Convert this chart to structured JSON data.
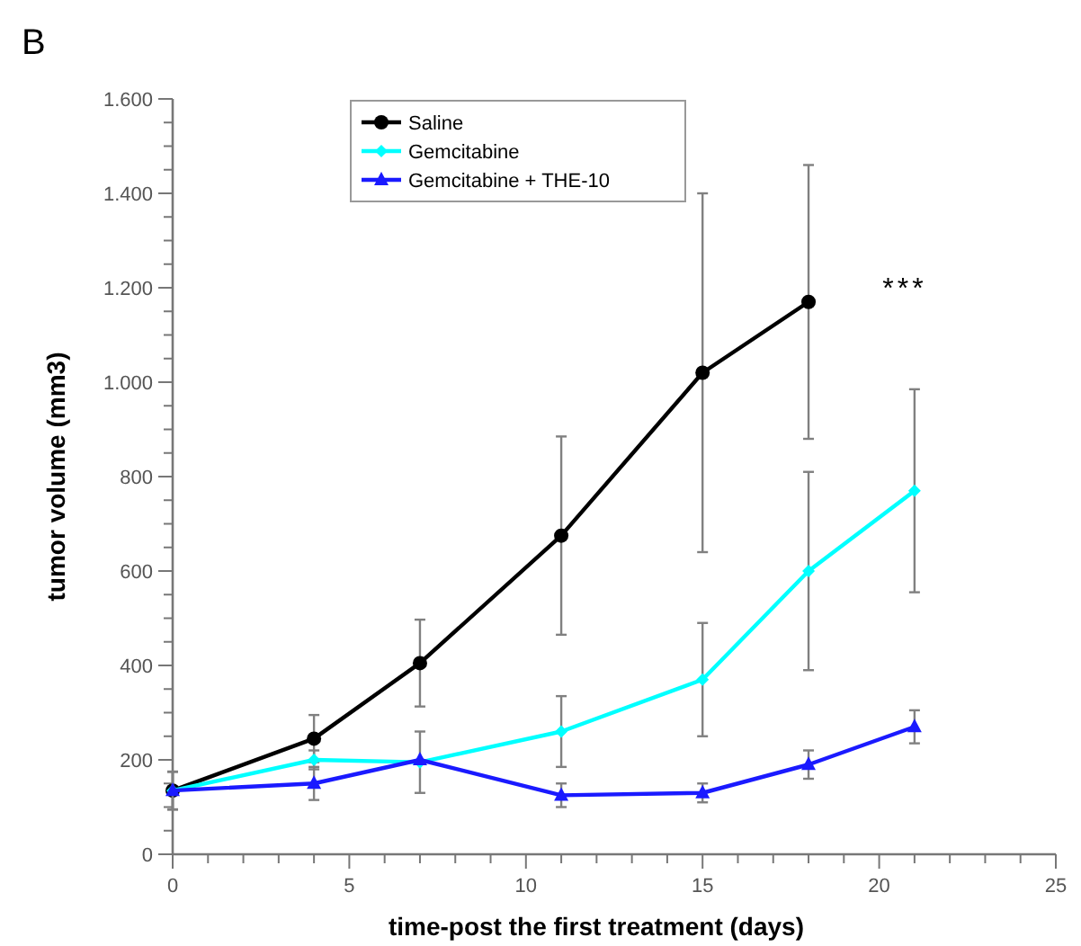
{
  "chart_data": {
    "type": "line",
    "title": "B",
    "xlabel": "time-post the first treatment (days)",
    "ylabel": "tumor volume (mm3)",
    "x": [
      0,
      4,
      7,
      11,
      15,
      18,
      21
    ],
    "series": [
      {
        "name": "Saline",
        "color": "#000000",
        "marker": "circle",
        "values": [
          135,
          245,
          405,
          675,
          1020,
          1170,
          null
        ],
        "errors": [
          40,
          50,
          92,
          210,
          380,
          290,
          null
        ]
      },
      {
        "name": "Gemcitabine",
        "color": "#00ffff",
        "marker": "diamond",
        "values": [
          135,
          200,
          195,
          260,
          370,
          600,
          770
        ],
        "errors": [
          40,
          20,
          65,
          75,
          120,
          210,
          215
        ]
      },
      {
        "name": "Gemcitabine + THE-10",
        "color": "#1a1aff",
        "marker": "triangle",
        "values": [
          135,
          150,
          200,
          125,
          130,
          190,
          270
        ],
        "errors": [
          40,
          35,
          null,
          25,
          20,
          30,
          35
        ]
      }
    ],
    "xlim": [
      0,
      25
    ],
    "xticks": [
      0,
      {
        "value": 1,
        "label": null
      },
      {
        "value": 2,
        "label": null
      },
      {
        "value": 3,
        "label": null
      },
      {
        "value": 4,
        "label": null
      },
      5,
      {
        "value": 6,
        "label": null
      },
      {
        "value": 7,
        "label": null
      },
      {
        "value": 8,
        "label": null
      },
      {
        "value": 9,
        "label": null
      },
      10,
      {
        "value": 11,
        "label": null
      },
      {
        "value": 12,
        "label": null
      },
      {
        "value": 13,
        "label": null
      },
      {
        "value": 14,
        "label": null
      },
      15,
      {
        "value": 16,
        "label": null
      },
      {
        "value": 17,
        "label": null
      },
      {
        "value": 18,
        "label": null
      },
      {
        "value": 19,
        "label": null
      },
      20,
      {
        "value": 21,
        "label": null
      },
      {
        "value": 22,
        "label": null
      },
      {
        "value": 23,
        "label": null
      },
      {
        "value": 24,
        "label": null
      },
      25
    ],
    "ylim": [
      0,
      1600
    ],
    "yticks": [
      0,
      {
        "value": 50,
        "label": null
      },
      {
        "value": 100,
        "label": null
      },
      {
        "value": 150,
        "label": null
      },
      200,
      {
        "value": 250,
        "label": null
      },
      {
        "value": 300,
        "label": null
      },
      {
        "value": 350,
        "label": null
      },
      400,
      {
        "value": 450,
        "label": null
      },
      {
        "value": 500,
        "label": null
      },
      {
        "value": 550,
        "label": null
      },
      600,
      {
        "value": 650,
        "label": null
      },
      {
        "value": 700,
        "label": null
      },
      {
        "value": 750,
        "label": null
      },
      800,
      {
        "value": 850,
        "label": null
      },
      {
        "value": 900,
        "label": null
      },
      {
        "value": 950,
        "label": null
      },
      {
        "value": 1000,
        "label": "1.000"
      },
      {
        "value": 1050,
        "label": null
      },
      {
        "value": 1100,
        "label": null
      },
      {
        "value": 1150,
        "label": null
      },
      {
        "value": 1200,
        "label": "1.200"
      },
      {
        "value": 1250,
        "label": null
      },
      {
        "value": 1300,
        "label": null
      },
      {
        "value": 1350,
        "label": null
      },
      {
        "value": 1400,
        "label": "1.400"
      },
      {
        "value": 1450,
        "label": null
      },
      {
        "value": 1500,
        "label": null
      },
      {
        "value": 1550,
        "label": null
      },
      {
        "value": 1600,
        "label": "1.600"
      }
    ],
    "annotations": [
      "***"
    ],
    "legend": "top",
    "grid": false
  }
}
